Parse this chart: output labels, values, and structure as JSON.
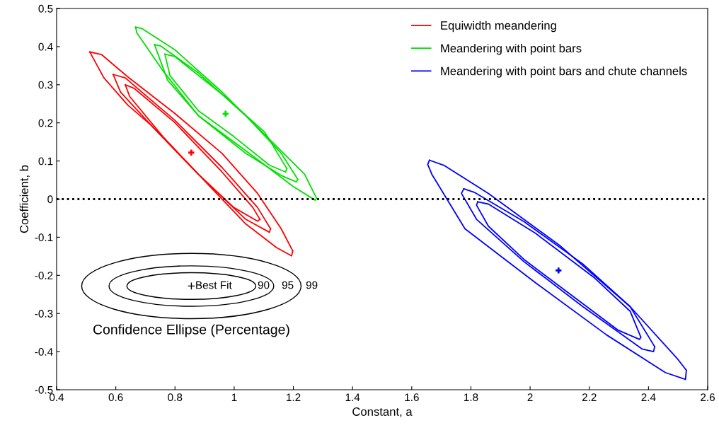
{
  "chart_data": {
    "type": "line",
    "xlabel": "Constant, a",
    "ylabel": "Coefficient, b",
    "xlim": [
      0.4,
      2.6
    ],
    "ylim": [
      -0.5,
      0.5
    ],
    "xticks": [
      0.4,
      0.6,
      0.8,
      1,
      1.2,
      1.4,
      1.6,
      1.8,
      2,
      2.2,
      2.4,
      2.6
    ],
    "yticks": [
      -0.5,
      -0.4,
      -0.3,
      -0.2,
      -0.1,
      0,
      0.1,
      0.2,
      0.3,
      0.4,
      0.5
    ],
    "grid": false,
    "legend": "top right",
    "marker": "none",
    "line_style": "solid",
    "ref_lines": [
      {
        "axis": "y",
        "value": 0,
        "color": "#000000",
        "line_style": "dotted"
      }
    ],
    "annotations": [
      "Best Fit",
      "90",
      "95",
      "99",
      "Confidence Ellipse (Percentage)"
    ],
    "series": [
      {
        "name": "Equiwidth meandering",
        "color": "#ff0000",
        "x": [
          0.512,
          0.552,
          0.64,
          0.799,
          0.959,
          1.079,
          1.159,
          1.198
        ],
        "values": [
          0.386,
          0.379,
          0.321,
          0.225,
          0.12,
          0.015,
          -0.078,
          -0.136
        ]
      },
      {
        "color": "#ff0000",
        "x": [
          0.512,
          0.56,
          0.64,
          0.719,
          0.879,
          1.039,
          1.143,
          1.194,
          1.198
        ],
        "values": [
          0.386,
          0.318,
          0.247,
          0.194,
          0.065,
          -0.065,
          -0.127,
          -0.149,
          -0.136
        ]
      },
      {
        "color": "#ff0000",
        "x": [
          0.591,
          0.632,
          0.799,
          0.959,
          1.079,
          1.123
        ],
        "values": [
          0.327,
          0.318,
          0.207,
          0.083,
          -0.022,
          -0.078
        ]
      },
      {
        "color": "#ff0000",
        "x": [
          0.591,
          0.616,
          0.719,
          0.879,
          1.039,
          1.119,
          1.123
        ],
        "values": [
          0.327,
          0.281,
          0.194,
          0.065,
          -0.053,
          -0.087,
          -0.078
        ]
      },
      {
        "color": "#ff0000",
        "x": [
          0.632,
          0.663,
          0.799,
          0.959,
          1.063,
          1.087
        ],
        "values": [
          0.3,
          0.29,
          0.201,
          0.071,
          -0.022,
          -0.053
        ]
      },
      {
        "color": "#ff0000",
        "x": [
          0.632,
          0.647,
          0.759,
          0.879,
          0.999,
          1.079,
          1.087
        ],
        "values": [
          0.3,
          0.269,
          0.164,
          0.065,
          -0.022,
          -0.058,
          -0.053
        ]
      },
      {
        "type": "scatter",
        "marker": "cross",
        "color": "#ff0000",
        "x": [
          0.855
        ],
        "values": [
          0.122
        ]
      },
      {
        "name": "Meandering with point bars",
        "color": "#00e000",
        "x": [
          0.667,
          0.687,
          0.799,
          0.959,
          1.119,
          1.238,
          1.278
        ],
        "values": [
          0.451,
          0.448,
          0.392,
          0.281,
          0.157,
          0.065,
          0.003
        ]
      },
      {
        "color": "#00e000",
        "x": [
          0.667,
          0.671,
          0.759,
          0.879,
          1.039,
          1.198,
          1.274,
          1.278
        ],
        "values": [
          0.451,
          0.436,
          0.337,
          0.219,
          0.127,
          0.034,
          -0.003,
          0.003
        ]
      },
      {
        "color": "#00e000",
        "x": [
          0.731,
          0.751,
          0.879,
          1.039,
          1.159,
          1.215
        ],
        "values": [
          0.405,
          0.402,
          0.331,
          0.219,
          0.12,
          0.052
        ]
      },
      {
        "color": "#00e000",
        "x": [
          0.731,
          0.775,
          0.879,
          1.039,
          1.159,
          1.21,
          1.215
        ],
        "values": [
          0.405,
          0.312,
          0.219,
          0.12,
          0.062,
          0.045,
          0.052
        ]
      },
      {
        "color": "#00e000",
        "x": [
          0.766,
          0.799,
          0.959,
          1.103,
          1.178
        ],
        "values": [
          0.38,
          0.374,
          0.275,
          0.176,
          0.08
        ]
      },
      {
        "color": "#00e000",
        "x": [
          0.766,
          0.783,
          0.879,
          0.999,
          1.119,
          1.174,
          1.178
        ],
        "values": [
          0.38,
          0.324,
          0.232,
          0.164,
          0.089,
          0.071,
          0.08
        ]
      },
      {
        "type": "scatter",
        "marker": "cross",
        "color": "#00e000",
        "x": [
          0.971
        ],
        "values": [
          0.224
        ]
      },
      {
        "name": "Meandering with point bars and chute channels",
        "color": "#0000ff",
        "x": [
          1.66,
          1.708,
          1.859,
          2.099,
          2.338,
          2.497,
          2.528
        ],
        "values": [
          0.102,
          0.089,
          0.015,
          -0.121,
          -0.282,
          -0.418,
          -0.449
        ]
      },
      {
        "color": "#0000ff",
        "x": [
          1.66,
          1.654,
          1.668,
          1.78,
          2.019,
          2.258,
          2.457,
          2.525,
          2.528
        ],
        "values": [
          0.102,
          0.091,
          0.065,
          -0.078,
          -0.22,
          -0.356,
          -0.455,
          -0.473,
          -0.449
        ]
      },
      {
        "color": "#0000ff",
        "x": [
          1.776,
          1.811,
          1.979,
          2.178,
          2.338,
          2.421
        ],
        "values": [
          0.027,
          0.018,
          -0.059,
          -0.17,
          -0.282,
          -0.387
        ]
      },
      {
        "color": "#0000ff",
        "x": [
          1.776,
          1.768,
          1.819,
          1.979,
          2.178,
          2.378,
          2.417,
          2.421
        ],
        "values": [
          0.027,
          0.015,
          -0.053,
          -0.164,
          -0.282,
          -0.393,
          -0.4,
          -0.387
        ]
      },
      {
        "color": "#0000ff",
        "x": [
          1.823,
          1.859,
          2.019,
          2.218,
          2.338,
          2.374
        ],
        "values": [
          -0.007,
          -0.013,
          -0.09,
          -0.207,
          -0.294,
          -0.362
        ]
      },
      {
        "color": "#0000ff",
        "x": [
          1.823,
          1.819,
          1.859,
          1.979,
          2.138,
          2.298,
          2.37,
          2.374
        ],
        "values": [
          -0.007,
          -0.016,
          -0.071,
          -0.158,
          -0.251,
          -0.344,
          -0.368,
          -0.362
        ]
      },
      {
        "type": "scatter",
        "marker": "cross",
        "color": "#0000ff",
        "x": [
          2.096
        ],
        "values": [
          -0.187
        ]
      }
    ]
  }
}
